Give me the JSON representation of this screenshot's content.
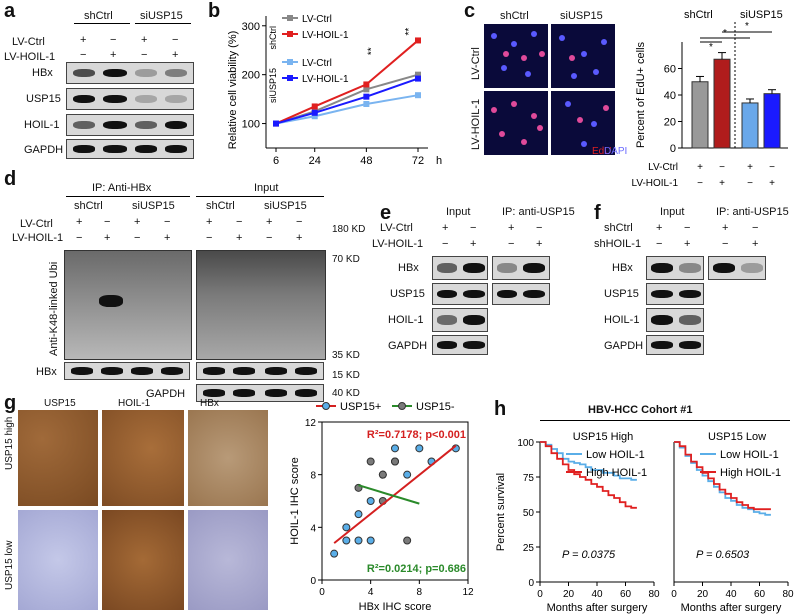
{
  "panels": [
    "a",
    "b",
    "c",
    "d",
    "e",
    "f",
    "g",
    "h"
  ],
  "a": {
    "groups": [
      "shCtrl",
      "siUSP15"
    ],
    "conditions": [
      "LV-Ctrl",
      "LV-HOIL-1"
    ],
    "signs": [
      [
        "+",
        "−",
        "+",
        "−"
      ],
      [
        "−",
        "+",
        "−",
        "+"
      ]
    ],
    "blots": [
      "HBx",
      "USP15",
      "HOIL-1",
      "GAPDH"
    ]
  },
  "b": {
    "chart_data": {
      "type": "line",
      "x": [
        6,
        24,
        48,
        72
      ],
      "xlabel": "h",
      "ylabel": "Relative cell viability (%)",
      "ylim": [
        50,
        320
      ],
      "yticks": [
        100,
        200,
        300
      ],
      "groups": [
        "shCtrl",
        "siUSP15"
      ],
      "series": [
        {
          "name": "LV-Ctrl",
          "group": "shCtrl",
          "color": "#888888",
          "values": [
            100,
            125,
            170,
            200
          ]
        },
        {
          "name": "LV-HOIL-1",
          "group": "shCtrl",
          "color": "#e02020",
          "values": [
            100,
            135,
            180,
            270
          ]
        },
        {
          "name": "LV-Ctrl",
          "group": "siUSP15",
          "color": "#7ab4f0",
          "values": [
            100,
            115,
            140,
            158
          ]
        },
        {
          "name": "LV-HOIL-1",
          "group": "siUSP15",
          "color": "#1a1aff",
          "values": [
            100,
            122,
            155,
            192
          ]
        }
      ],
      "annotations": [
        "**",
        "**"
      ]
    }
  },
  "c": {
    "col_labels": [
      "shCtrl",
      "siUSP15"
    ],
    "row_labels": [
      "LV-Ctrl",
      "LV-HOIL-1"
    ],
    "stain": {
      "edu": "EdU",
      "dapi": "DAPI"
    },
    "chart_data": {
      "type": "bar",
      "categories": [
        "shCtrl LV-Ctrl",
        "shCtrl LV-HOIL-1",
        "siUSP15 LV-Ctrl",
        "siUSP15 LV-HOIL-1"
      ],
      "values": [
        50,
        67,
        34,
        41
      ],
      "errors": [
        4,
        5,
        3,
        3
      ],
      "colors": [
        "#999999",
        "#b01c1c",
        "#6aa8ea",
        "#1a1aff"
      ],
      "ylabel": "Percent of EdU+ cells",
      "ylim": [
        0,
        80
      ],
      "yticks": [
        0,
        20,
        40,
        60
      ],
      "groups": [
        "shCtrl",
        "siUSP15"
      ],
      "sig": [
        "*",
        "*",
        "*"
      ],
      "conditions": [
        "LV-Ctrl",
        "LV-HOIL-1"
      ],
      "signs": [
        [
          "+",
          "−",
          "+",
          "−"
        ],
        [
          "−",
          "+",
          "−",
          "+"
        ]
      ]
    }
  },
  "d": {
    "ip_title": "IP: Anti-HBx",
    "input_title": "Input",
    "groups": [
      "shCtrl",
      "siUSP15",
      "shCtrl",
      "siUSP15"
    ],
    "conditions": [
      "LV-Ctrl",
      "LV-HOIL-1"
    ],
    "signs": [
      [
        "+",
        "−",
        "+",
        "−"
      ],
      [
        "−",
        "+",
        "−",
        "+"
      ]
    ],
    "ylabel": "Anti-K48-linked Ubi",
    "markers": [
      "180 KD",
      "70 KD",
      "35 KD",
      "15 KD",
      "40 KD"
    ],
    "blots": [
      "HBx",
      "GAPDH"
    ]
  },
  "e": {
    "input_title": "Input",
    "ip_title": "IP: anti-USP15",
    "conditions": [
      "LV-Ctrl",
      "LV-HOIL-1"
    ],
    "signs": [
      [
        "+",
        "−",
        "+",
        "−"
      ],
      [
        "−",
        "+",
        "−",
        "+"
      ]
    ],
    "blots": [
      "HBx",
      "USP15",
      "HOIL-1",
      "GAPDH"
    ]
  },
  "f": {
    "input_title": "Input",
    "ip_title": "IP: anti-USP15",
    "conditions": [
      "shCtrl",
      "shHOIL-1"
    ],
    "signs": [
      [
        "+",
        "−",
        "+",
        "−"
      ],
      [
        "−",
        "+",
        "−",
        "+"
      ]
    ],
    "blots": [
      "HBx",
      "USP15",
      "HOIL-1",
      "GAPDH"
    ]
  },
  "g": {
    "col_labels": [
      "USP15",
      "HOIL-1",
      "HBx"
    ],
    "row_labels": [
      "USP15 high",
      "USP15 low"
    ],
    "chart_data": {
      "type": "scatter",
      "xlabel": "HBx IHC score",
      "ylabel": "HOIL-1 IHC score",
      "xlim": [
        0,
        12
      ],
      "ylim": [
        0,
        12
      ],
      "xticks": [
        0,
        4,
        8,
        12
      ],
      "yticks": [
        0,
        4,
        8,
        12
      ],
      "series": [
        {
          "name": "USP15+",
          "color": "#5aaee8",
          "x": [
            1,
            2,
            2,
            3,
            3,
            4,
            4,
            5,
            6,
            6,
            7,
            8,
            9,
            11
          ],
          "y": [
            2,
            4,
            3,
            5,
            3,
            3,
            6,
            8,
            9,
            10,
            8,
            10,
            9,
            10
          ]
        },
        {
          "name": "USP15-",
          "color": "#7a7a7a",
          "x": [
            3,
            4,
            5,
            5,
            6,
            7
          ],
          "y": [
            7,
            9,
            8,
            6,
            9,
            3
          ]
        }
      ],
      "fits": [
        {
          "series": "USP15+",
          "color": "#d42020",
          "x": [
            1,
            11
          ],
          "y": [
            2.8,
            10.2
          ]
        },
        {
          "series": "USP15-",
          "color": "#2a8a2a",
          "x": [
            3,
            8
          ],
          "y": [
            7.2,
            5.8
          ]
        }
      ],
      "annotations": [
        "R²=0.7178; p<0.001",
        "R²=0.0214; p=0.686"
      ]
    }
  },
  "h": {
    "title": "HBV-HCC Cohort #1",
    "subtitles": [
      "USP15 High",
      "USP15 Low"
    ],
    "chart_data": [
      {
        "type": "line",
        "title": "USP15 High",
        "xlabel": "Months after surgery",
        "ylabel": "Percent survival",
        "xlim": [
          0,
          80
        ],
        "ylim": [
          0,
          100
        ],
        "xticks": [
          0,
          20,
          40,
          60,
          80
        ],
        "yticks": [
          0,
          25,
          50,
          75,
          100
        ],
        "series": [
          {
            "name": "Low HOIL-1",
            "color": "#5aaee8",
            "x": [
              0,
              4,
              8,
              12,
              16,
              20,
              24,
              28,
              32,
              36,
              40,
              44,
              48,
              52,
              56,
              60,
              64,
              68
            ],
            "y": [
              100,
              98,
              95,
              92,
              88,
              86,
              85,
              84,
              82,
              80,
              80,
              78,
              78,
              76,
              74,
              74,
              73,
              73
            ]
          },
          {
            "name": "High HOIL-1",
            "color": "#e02020",
            "x": [
              0,
              4,
              8,
              12,
              16,
              20,
              24,
              28,
              32,
              36,
              40,
              44,
              48,
              52,
              56,
              60,
              64,
              68
            ],
            "y": [
              100,
              97,
              92,
              88,
              84,
              80,
              77,
              75,
              73,
              70,
              68,
              65,
              62,
              60,
              57,
              54,
              53,
              53
            ]
          }
        ],
        "annotation": "P = 0.0375"
      },
      {
        "type": "line",
        "title": "USP15 Low",
        "xlabel": "Months after surgery",
        "xlim": [
          0,
          80
        ],
        "ylim": [
          0,
          100
        ],
        "xticks": [
          0,
          20,
          40,
          60,
          80
        ],
        "series": [
          {
            "name": "Low HOIL-1",
            "color": "#5aaee8",
            "x": [
              0,
              4,
              8,
              12,
              16,
              20,
              24,
              28,
              32,
              36,
              40,
              44,
              48,
              52,
              56,
              60,
              64,
              68
            ],
            "y": [
              100,
              96,
              90,
              85,
              80,
              76,
              72,
              68,
              64,
              60,
              58,
              55,
              53,
              52,
              50,
              49,
              48,
              48
            ]
          },
          {
            "name": "High HOIL-1",
            "color": "#e02020",
            "x": [
              0,
              4,
              8,
              12,
              16,
              20,
              24,
              28,
              32,
              36,
              40,
              44,
              48,
              52,
              56,
              60,
              64,
              68
            ],
            "y": [
              100,
              97,
              91,
              86,
              82,
              78,
              74,
              70,
              66,
              63,
              60,
              57,
              55,
              53,
              52,
              52,
              52,
              52
            ]
          }
        ],
        "annotation": "P = 0.6503"
      }
    ]
  }
}
